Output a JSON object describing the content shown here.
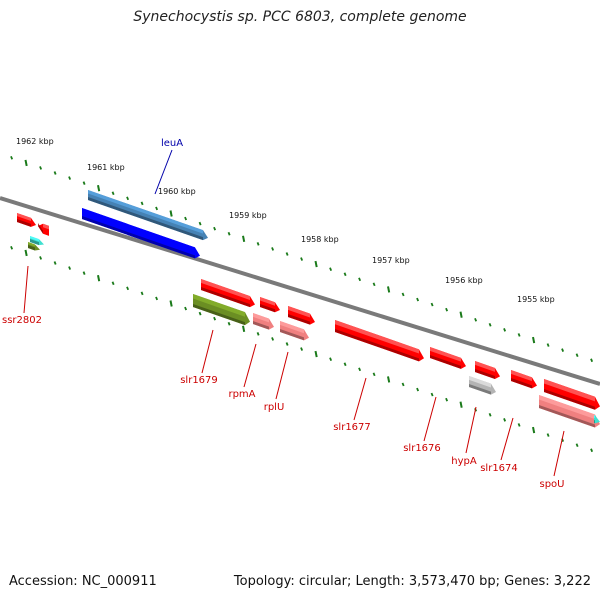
{
  "title": "Synechocystis sp. PCC 6803, complete genome",
  "footer": {
    "accession": "Accession: NC_000911",
    "summary": "Topology: circular; Length: 3,573,470 bp; Genes: 3,222"
  },
  "ruler_labels": [
    "1962 kbp",
    "1961 kbp",
    "1960 kbp",
    "1959 kbp",
    "1958 kbp",
    "1957 kbp",
    "1956 kbp",
    "1955 kbp"
  ],
  "gene_labels": {
    "leuA": "leuA",
    "ssr2802": "ssr2802",
    "slr1679": "slr1679",
    "rpmA": "rpmA",
    "rplU": "rplU",
    "slr1677": "slr1677",
    "slr1676": "slr1676",
    "hypA": "hypA",
    "slr1674": "slr1674",
    "spoU": "spoU"
  },
  "colors": {
    "backbone": "#7a7a7a",
    "ruler_tick": "#1a7a1a",
    "gene_red": "#ff0000",
    "gene_pink": "#f08080",
    "gene_blue": "#0000ff",
    "gene_steelblue": "#4682b4",
    "gene_olive": "#6b8e23",
    "gene_grey": "#b4b4b4",
    "gene_cyan": "#40e0d0",
    "label_red": "#cc0000",
    "label_blue": "#0000aa"
  }
}
